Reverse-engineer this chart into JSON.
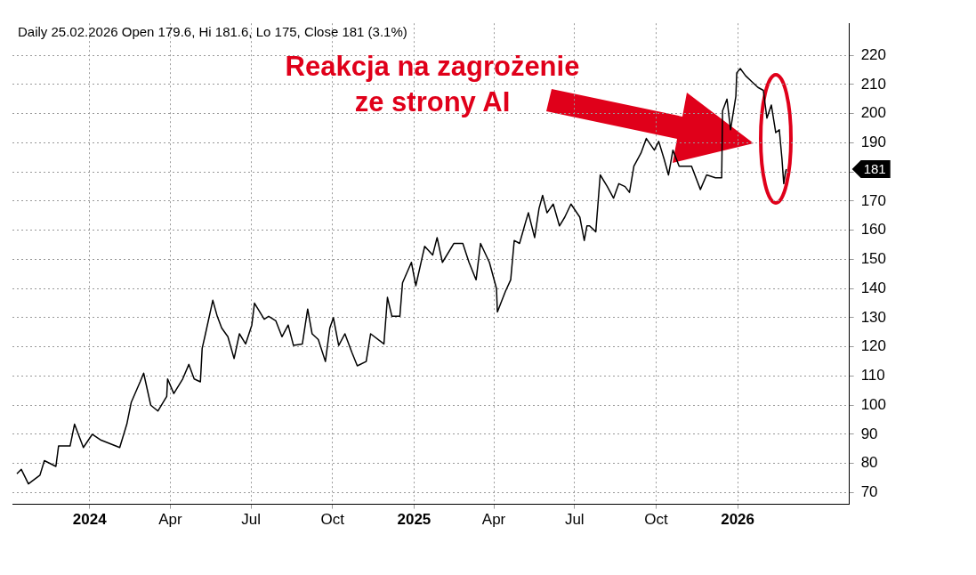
{
  "chart_data": {
    "type": "line",
    "title": "Daily 25.02.2026 Open 179.6, Hi 181.6, Lo 175, Close 181 (3.1%)",
    "annotations": [
      "Reakcja na zagrożenie ze strony AI",
      "181"
    ],
    "x": [
      "2023-10-11",
      "2023-10-16",
      "2023-10-24",
      "2023-11-06",
      "2023-11-11",
      "2023-11-24",
      "2023-11-27",
      "2023-12-10",
      "2023-12-15",
      "2023-12-25",
      "2024-01-04",
      "2024-01-14",
      "2024-02-04",
      "2024-02-12",
      "2024-02-17",
      "2024-02-27",
      "2024-03-02",
      "2024-03-10",
      "2024-03-18",
      "2024-03-28",
      "2024-03-29",
      "2024-04-05",
      "2024-04-15",
      "2024-04-22",
      "2024-04-28",
      "2024-05-05",
      "2024-05-07",
      "2024-05-10",
      "2024-05-19",
      "2024-05-24",
      "2024-05-29",
      "2024-06-05",
      "2024-06-12",
      "2024-06-18",
      "2024-06-25",
      "2024-07-02",
      "2024-07-05",
      "2024-07-16",
      "2024-07-21",
      "2024-07-29",
      "2024-08-05",
      "2024-08-12",
      "2024-08-18",
      "2024-08-28",
      "2024-09-03",
      "2024-09-08",
      "2024-09-15",
      "2024-09-23",
      "2024-09-28",
      "2024-10-02",
      "2024-10-08",
      "2024-10-15",
      "2024-10-23",
      "2024-10-29",
      "2024-11-08",
      "2024-11-13",
      "2024-11-28",
      "2024-12-02",
      "2024-12-07",
      "2024-12-16",
      "2024-12-19",
      "2024-12-29",
      "2025-01-03",
      "2025-01-10",
      "2025-01-13",
      "2025-01-22",
      "2025-01-27",
      "2025-02-02",
      "2025-02-15",
      "2025-02-25",
      "2025-03-04",
      "2025-03-12",
      "2025-03-17",
      "2025-03-27",
      "2025-04-04",
      "2025-04-05",
      "2025-04-14",
      "2025-04-20",
      "2025-04-24",
      "2025-04-30",
      "2025-05-07",
      "2025-05-10",
      "2025-05-17",
      "2025-05-22",
      "2025-05-26",
      "2025-05-31",
      "2025-06-07",
      "2025-06-14",
      "2025-06-20",
      "2025-06-27",
      "2025-07-07",
      "2025-07-12",
      "2025-07-15",
      "2025-07-18",
      "2025-07-25",
      "2025-07-30",
      "2025-08-07",
      "2025-08-14",
      "2025-08-20",
      "2025-08-27",
      "2025-09-01",
      "2025-09-06",
      "2025-09-14",
      "2025-09-20",
      "2025-09-29",
      "2025-10-04",
      "2025-10-10",
      "2025-10-15",
      "2025-10-20",
      "2025-10-27",
      "2025-11-10",
      "2025-11-20",
      "2025-11-27",
      "2025-12-07",
      "2025-12-14",
      "2025-12-15",
      "2025-12-20",
      "2025-12-24",
      "2025-12-30",
      "2025-12-31",
      "2026-01-04",
      "2026-01-10",
      "2026-01-17",
      "2026-01-24",
      "2026-01-30",
      "2026-02-03",
      "2026-02-08",
      "2026-02-13",
      "2026-02-17",
      "2026-02-20",
      "2026-02-22",
      "2026-02-24",
      "2026-02-25"
    ],
    "series": [
      {
        "color": "#000000",
        "values": [
          76.5,
          78,
          73,
          76,
          81,
          79,
          86,
          86,
          93.5,
          85.5,
          90,
          88,
          85.5,
          93.5,
          101,
          108,
          111,
          100,
          98,
          103,
          109,
          104,
          109,
          114,
          109,
          108,
          119.5,
          123.5,
          136,
          130.5,
          126.5,
          123.5,
          116,
          124.5,
          121,
          127.5,
          135,
          129.5,
          130.5,
          129,
          123.5,
          127.5,
          120.5,
          121,
          133,
          124.5,
          122.5,
          115,
          126.5,
          130,
          120.5,
          124.5,
          118,
          113.5,
          115,
          124.5,
          121,
          137,
          130.5,
          130.5,
          142,
          149,
          141,
          150.5,
          154.5,
          151.5,
          157.5,
          149,
          155.5,
          155.5,
          149,
          143,
          155.5,
          149,
          140,
          132,
          139,
          143,
          156.5,
          155.5,
          163,
          166,
          157.5,
          167.5,
          172,
          166,
          169,
          161.5,
          164.5,
          169,
          164.5,
          156.5,
          161.5,
          161.5,
          159.5,
          179,
          175,
          171,
          176,
          175,
          173,
          182,
          186.5,
          191.5,
          187.5,
          190.5,
          184.5,
          179,
          187.5,
          182,
          182,
          174,
          179,
          178,
          178,
          201,
          205,
          194.5,
          206,
          214,
          215.5,
          213,
          211,
          209,
          208,
          198.5,
          203,
          193.5,
          194.5,
          184.5,
          176,
          180,
          181
        ]
      }
    ],
    "xlim": [
      "2023-10-06",
      "2026-05-07"
    ],
    "xticks": [
      {
        "value": "2024-01-01",
        "label": "2024"
      },
      {
        "value": "2024-04-01",
        "label": "Apr"
      },
      {
        "value": "2024-07-01",
        "label": "Jul"
      },
      {
        "value": "2024-10-01",
        "label": "Oct"
      },
      {
        "value": "2025-01-01",
        "label": "2025"
      },
      {
        "value": "2025-04-01",
        "label": "Apr"
      },
      {
        "value": "2025-07-01",
        "label": "Jul"
      },
      {
        "value": "2025-10-01",
        "label": "Oct"
      },
      {
        "value": "2026-01-01",
        "label": "2026"
      }
    ],
    "ylim": [
      66,
      231
    ],
    "yticks": [
      70,
      80,
      90,
      100,
      110,
      120,
      130,
      140,
      150,
      160,
      170,
      {
        "value": 180,
        "label": null
      },
      190,
      200,
      210,
      220
    ],
    "grid": true,
    "legend": false,
    "marker": "none",
    "line_style": "solid"
  }
}
